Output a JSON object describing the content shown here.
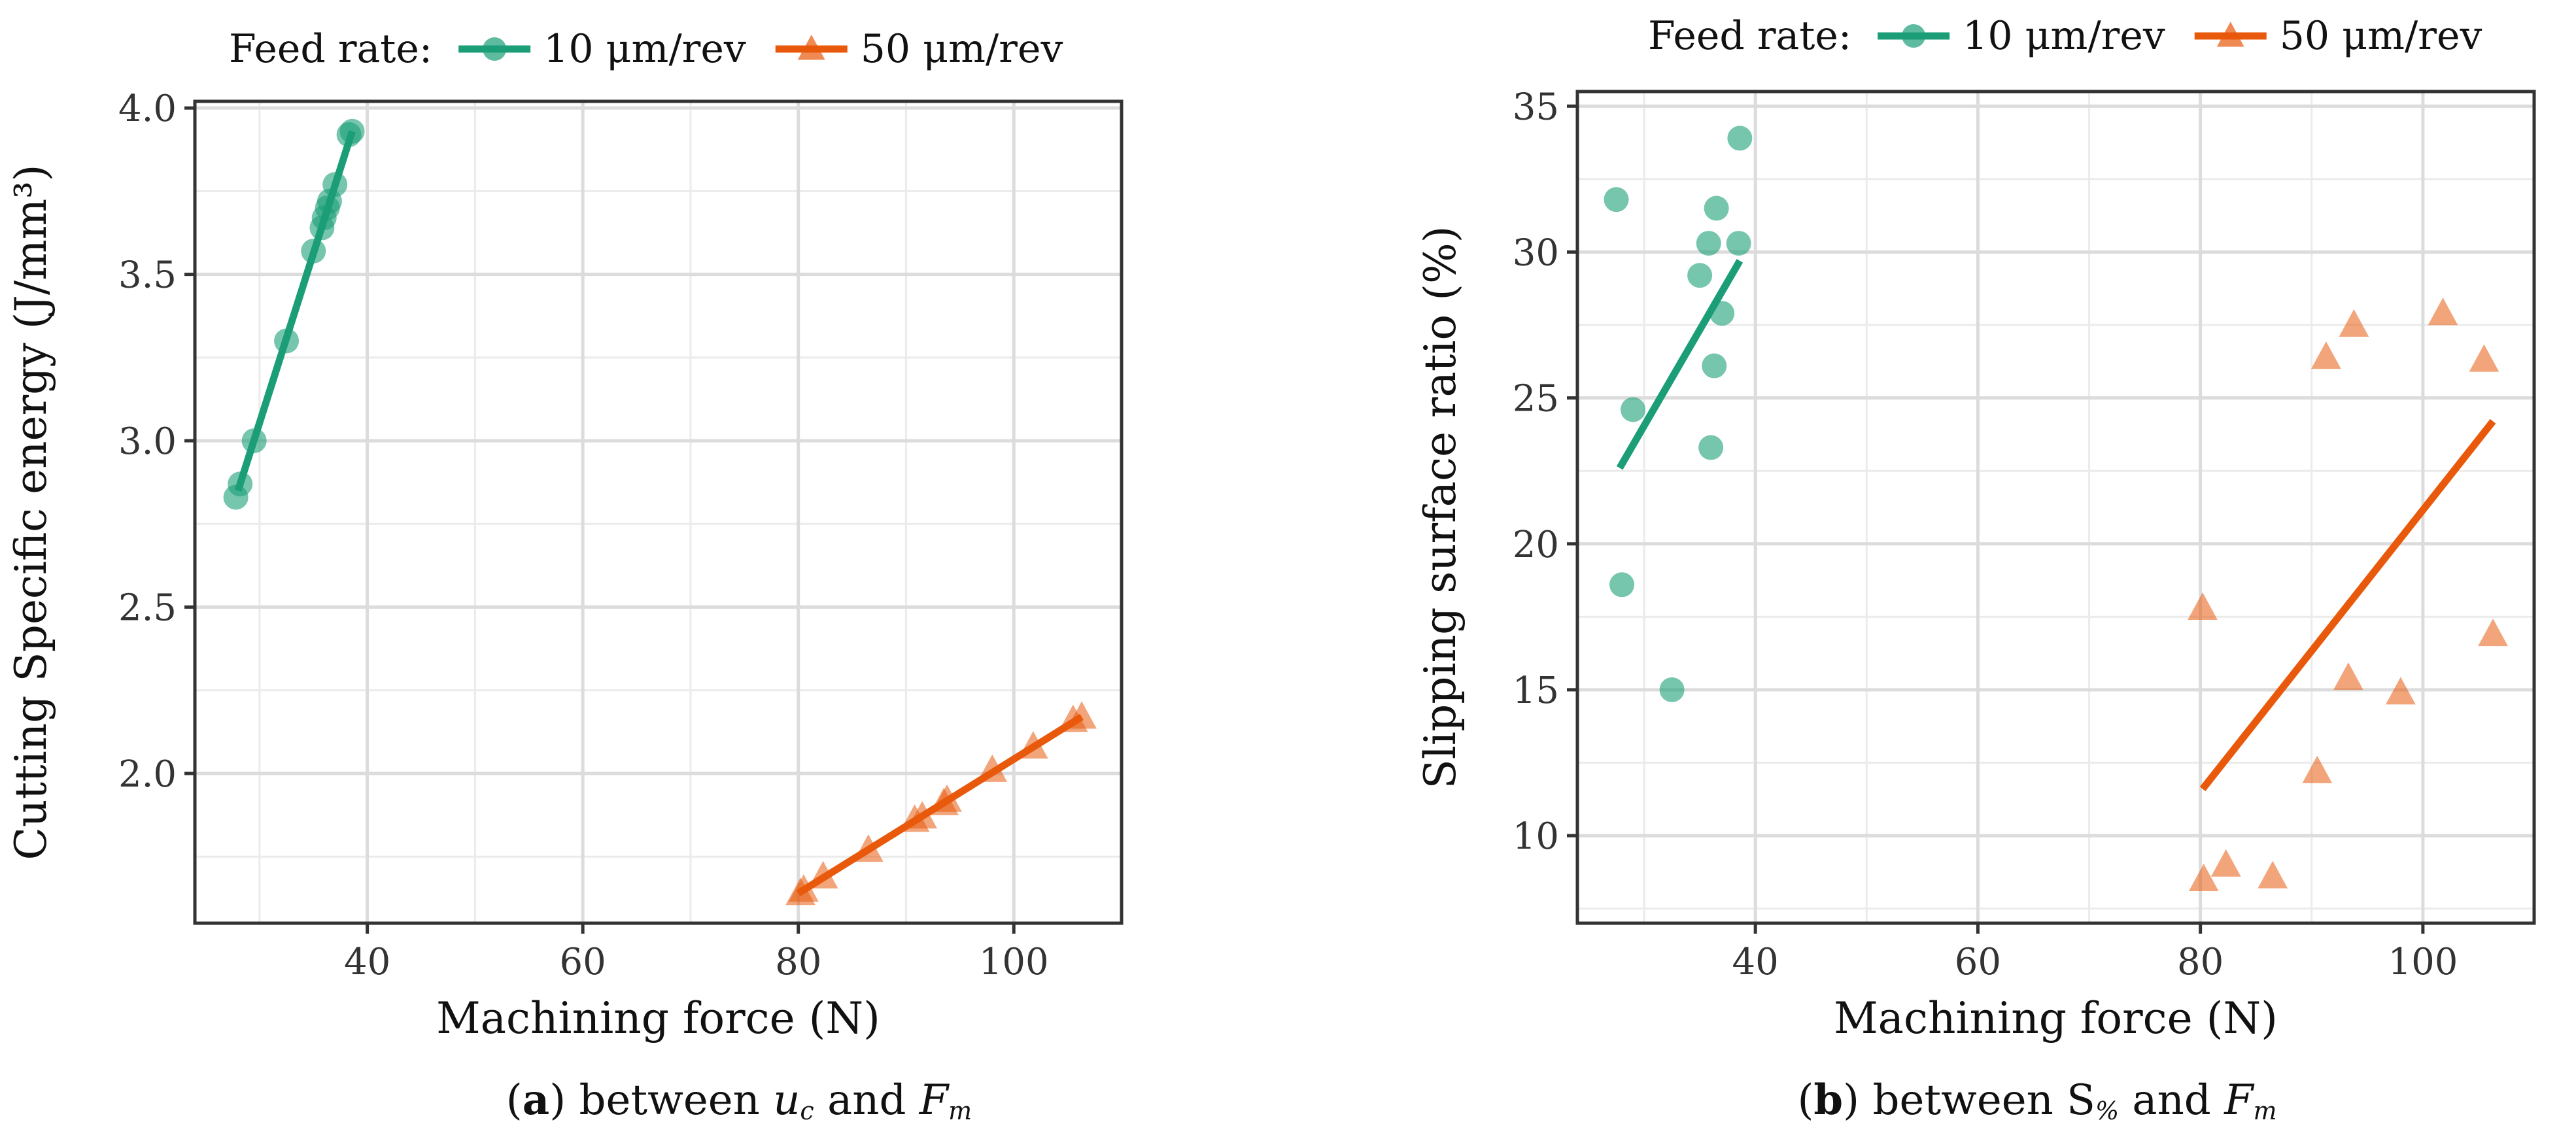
{
  "chart_data": [
    {
      "type": "scatter",
      "xlabel": "Machining force (N)",
      "ylabel": "Cutting Specific energy (J/mm³)",
      "xlim": [
        24,
        110
      ],
      "ylim": [
        1.55,
        4.02
      ],
      "xticks": [
        "40",
        "60",
        "80",
        "100"
      ],
      "yticks": [
        "2.0",
        "2.5",
        "3.0",
        "3.5",
        "4.0"
      ],
      "grid": true,
      "legend": {
        "title": "Feed rate:",
        "placement": "top"
      },
      "caption": {
        "letter": "a",
        "text1": "between",
        "sym1": "u",
        "sub1": "c",
        "text2": "and",
        "sym2": "F",
        "sub2": "m"
      },
      "series": [
        {
          "name": "10 μm/rev",
          "marker": "circle",
          "color": "#1b9e77",
          "points": [
            [
              27.8,
              2.83
            ],
            [
              28.2,
              2.87
            ],
            [
              29.5,
              3.0
            ],
            [
              32.5,
              3.3
            ],
            [
              35.0,
              3.57
            ],
            [
              35.8,
              3.64
            ],
            [
              36.0,
              3.67
            ],
            [
              36.3,
              3.7
            ],
            [
              36.5,
              3.72
            ],
            [
              37.0,
              3.77
            ],
            [
              38.3,
              3.92
            ],
            [
              38.6,
              3.93
            ]
          ],
          "fit": [
            [
              28,
              2.85
            ],
            [
              38.6,
              3.93
            ]
          ]
        },
        {
          "name": "50 μm/rev",
          "marker": "triangle",
          "color": "#e8590c",
          "points": [
            [
              80.2,
              1.64
            ],
            [
              80.5,
              1.65
            ],
            [
              82.3,
              1.69
            ],
            [
              86.5,
              1.77
            ],
            [
              90.8,
              1.86
            ],
            [
              91.5,
              1.87
            ],
            [
              93.5,
              1.91
            ],
            [
              93.8,
              1.92
            ],
            [
              98.0,
              2.01
            ],
            [
              101.8,
              2.08
            ],
            [
              105.5,
              2.16
            ],
            [
              106.3,
              2.17
            ]
          ],
          "fit": [
            [
              80,
              1.64
            ],
            [
              106.3,
              2.17
            ]
          ]
        }
      ]
    },
    {
      "type": "scatter",
      "xlabel": "Machining force (N)",
      "ylabel": "Slipping surface ratio (%)",
      "xlim": [
        24,
        110
      ],
      "ylim": [
        7,
        35.5
      ],
      "xticks": [
        "40",
        "60",
        "80",
        "100"
      ],
      "yticks": [
        "10",
        "15",
        "20",
        "25",
        "30",
        "35"
      ],
      "grid": true,
      "legend": {
        "title": "Feed rate:",
        "placement": "top"
      },
      "caption": {
        "letter": "b",
        "text1": "between",
        "sym1": "S",
        "sub1": "%",
        "text2": "and",
        "sym2": "F",
        "sub2": "m"
      },
      "series": [
        {
          "name": "10 μm/rev",
          "marker": "circle",
          "color": "#1b9e77",
          "points": [
            [
              27.5,
              31.8
            ],
            [
              28.0,
              18.6
            ],
            [
              29.0,
              24.6
            ],
            [
              32.5,
              15.0
            ],
            [
              35.0,
              29.2
            ],
            [
              35.8,
              30.3
            ],
            [
              36.0,
              23.3
            ],
            [
              36.3,
              26.1
            ],
            [
              36.5,
              31.5
            ],
            [
              37.0,
              27.9
            ],
            [
              38.5,
              30.3
            ],
            [
              38.6,
              33.9
            ]
          ],
          "fit": [
            [
              27.8,
              22.6
            ],
            [
              38.6,
              29.7
            ]
          ]
        },
        {
          "name": "50 μm/rev",
          "marker": "triangle",
          "color": "#e8590c",
          "points": [
            [
              80.2,
              17.8
            ],
            [
              80.3,
              8.5
            ],
            [
              82.3,
              9.0
            ],
            [
              86.5,
              8.6
            ],
            [
              90.5,
              12.2
            ],
            [
              91.3,
              26.4
            ],
            [
              93.3,
              15.4
            ],
            [
              93.8,
              27.5
            ],
            [
              98.0,
              14.9
            ],
            [
              101.8,
              27.9
            ],
            [
              105.5,
              26.3
            ],
            [
              106.3,
              16.9
            ]
          ],
          "fit": [
            [
              80.2,
              11.6
            ],
            [
              106.3,
              24.2
            ]
          ]
        }
      ]
    }
  ]
}
